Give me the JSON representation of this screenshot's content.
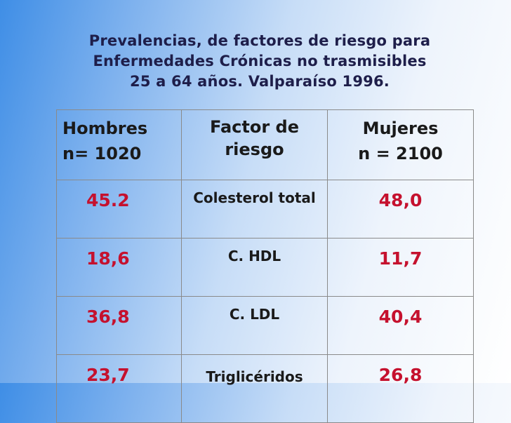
{
  "title_lines": [
    "Prevalencias, de factores de riesgo para",
    "Enfermedades Crónicas no trasmisibles",
    "25 a 64 años. Valparaíso 1996."
  ],
  "table": {
    "headers": {
      "hombres": [
        "Hombres",
        "n= 1020"
      ],
      "factor": "Factor de riesgo",
      "mujeres": [
        "Mujeres",
        "n = 2100"
      ]
    },
    "rows": [
      {
        "hombres": "45.2",
        "factor": "Colesterol total",
        "mujeres": "48,0"
      },
      {
        "hombres": "18,6",
        "factor": "C. HDL",
        "mujeres": "11,7"
      },
      {
        "hombres": "36,8",
        "factor": "C. LDL",
        "mujeres": "40,4"
      },
      {
        "hombres": "23,7",
        "factor": "Triglicéridos",
        "mujeres": "26,8"
      }
    ]
  },
  "colors": {
    "value_text": "#c5112e",
    "title_text": "#1e1e4a",
    "background_left": "#3f8ee6",
    "background_right": "#ffffff"
  }
}
